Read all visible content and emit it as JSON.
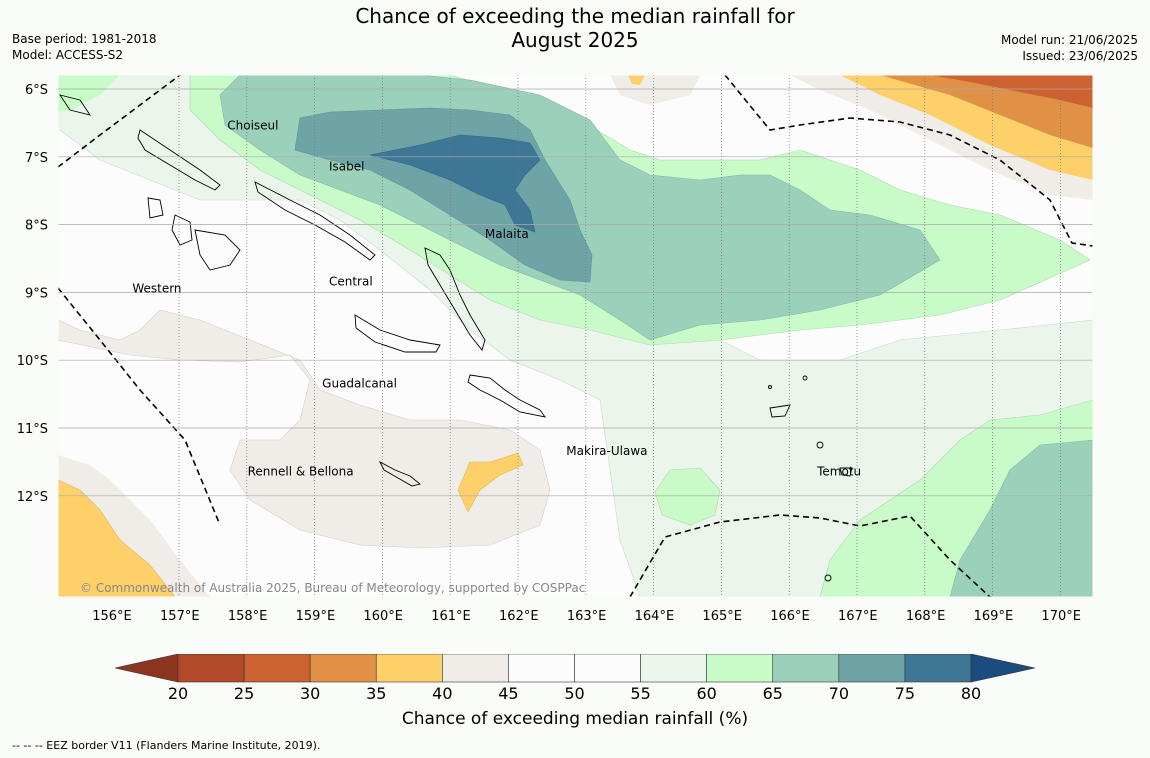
{
  "title_line1": "Chance of exceeding the median rainfall for",
  "title_line2": "August 2025",
  "base_period": "Base period: 1981-2018",
  "model": "Model: ACCESS-S2",
  "model_run": "Model run: 21/06/2025",
  "issued": "Issued: 23/06/2025",
  "copyright": "© Commonwealth of Australia 2025, Bureau of Meteorology, supported by COSPPac",
  "lon_ticks": [
    "156°E",
    "157°E",
    "158°E",
    "159°E",
    "160°E",
    "161°E",
    "162°E",
    "163°E",
    "164°E",
    "165°E",
    "166°E",
    "167°E",
    "168°E",
    "169°E",
    "170°E"
  ],
  "lat_ticks": [
    "6°S",
    "7°S",
    "8°S",
    "9°S",
    "10°S",
    "11°S",
    "12°S"
  ],
  "lon_values": [
    156,
    157,
    158,
    159,
    160,
    161,
    162,
    163,
    164,
    165,
    166,
    167,
    168,
    169,
    170
  ],
  "lat_values": [
    -6,
    -7,
    -8,
    -9,
    -10,
    -11,
    -12
  ],
  "region_labels": [
    {
      "name": "Choiseul",
      "lon": 157.7,
      "lat": -6.6
    },
    {
      "name": "Isabel",
      "lon": 159.2,
      "lat": -7.2
    },
    {
      "name": "Malaita",
      "lon": 161.5,
      "lat": -8.2
    },
    {
      "name": "Central",
      "lon": 159.2,
      "lat": -8.9
    },
    {
      "name": "Western",
      "lon": 156.3,
      "lat": -9.0
    },
    {
      "name": "Guadalcanal",
      "lon": 159.1,
      "lat": -10.4
    },
    {
      "name": "Makira-Ulawa",
      "lon": 162.7,
      "lat": -11.4
    },
    {
      "name": "Rennell & Bellona",
      "lon": 158.0,
      "lat": -11.7
    },
    {
      "name": "Temotu",
      "lon": 166.4,
      "lat": -11.7
    }
  ],
  "colorbar": {
    "title": "Chance of exceeding median rainfall (%)",
    "tick_labels": [
      "20",
      "25",
      "30",
      "35",
      "40",
      "45",
      "50",
      "55",
      "60",
      "65",
      "70",
      "75",
      "80"
    ],
    "colors": [
      "#b24a2a",
      "#cc6230",
      "#e09146",
      "#fed06a",
      "#f0ece8",
      "#fbfcfb",
      "#fbfcfb",
      "#ebf5eb",
      "#c8fbc8",
      "#9bd0bb",
      "#6fa4a6",
      "#3e7695"
    ],
    "under_color": "#8e3520",
    "over_color": "#1a4c80"
  },
  "eez_note": "--  --  -- EEZ border V11 (Flanders Marine Institute, 2019)."
}
